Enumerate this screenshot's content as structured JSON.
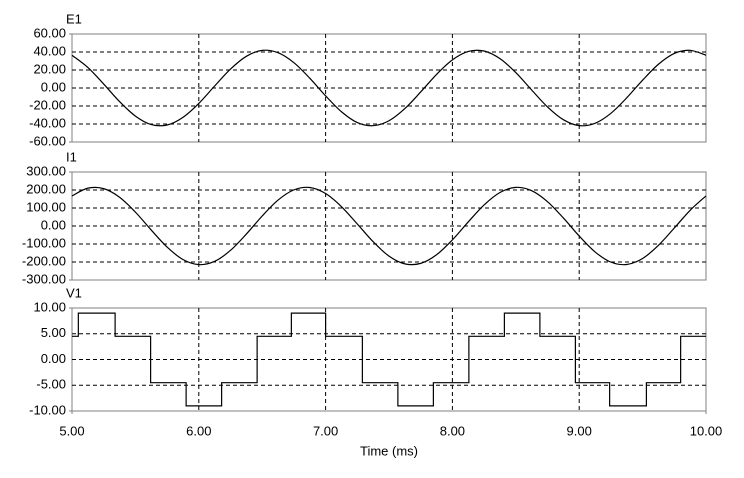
{
  "chart_data": [
    {
      "type": "line",
      "title": "E1",
      "color": "#000000",
      "x": [
        5,
        5.125,
        5.25,
        5.375,
        5.5,
        5.625,
        5.75,
        5.875,
        6,
        6.125,
        6.25,
        6.375,
        6.5,
        6.625,
        6.75,
        6.875,
        7,
        7.125,
        7.25,
        7.375,
        7.5,
        7.625,
        7.75,
        7.875,
        8,
        8.125,
        8.25,
        8.375,
        8.5,
        8.625,
        8.75,
        8.875,
        9,
        9.125,
        9.25,
        9.375,
        9.5,
        9.625,
        9.75,
        9.875,
        10
      ],
      "values": [
        36.4,
        22.9,
        4.4,
        -15.1,
        -31.2,
        -40.6,
        -41.1,
        -32.6,
        -17.1,
        2.2,
        21.0,
        35.2,
        41.8,
        39.2,
        28.1,
        10.9,
        -8.7,
        -26.4,
        -38.4,
        -41.9,
        -36.4,
        -22.9,
        -4.4,
        15.1,
        31.2,
        40.6,
        41.1,
        32.6,
        17.1,
        -2.2,
        -21.0,
        -35.2,
        -41.8,
        -39.2,
        -28.1,
        -10.9,
        8.7,
        26.4,
        38.4,
        41.9,
        36.4
      ],
      "xlim": [
        5,
        10
      ],
      "xticks": [
        6,
        7,
        8,
        9
      ],
      "ylim": [
        -60,
        60
      ],
      "yticks": [
        {
          "value": 60,
          "label": "60.00"
        },
        {
          "value": 40,
          "label": "40.00"
        },
        {
          "value": 20,
          "label": "20.00"
        },
        {
          "value": 0,
          "label": "0.00"
        },
        {
          "value": -20,
          "label": "-20.00"
        },
        {
          "value": -40,
          "label": "-40.00"
        },
        {
          "value": -60,
          "label": "-60.00"
        }
      ],
      "grid": true
    },
    {
      "type": "line",
      "title": "I1",
      "color": "#000000",
      "x": [
        5,
        5.125,
        5.25,
        5.375,
        5.5,
        5.625,
        5.75,
        5.875,
        6,
        6.125,
        6.25,
        6.375,
        6.5,
        6.625,
        6.75,
        6.875,
        7,
        7.125,
        7.25,
        7.375,
        7.5,
        7.625,
        7.75,
        7.875,
        8,
        8.125,
        8.25,
        8.375,
        8.5,
        8.625,
        8.75,
        8.875,
        9,
        9.125,
        9.25,
        9.375,
        9.5,
        9.625,
        9.75,
        9.875,
        10
      ],
      "values": [
        167.1,
        210.3,
        207.7,
        159.8,
        77.0,
        -22.5,
        -117.1,
        -186.2,
        -214.7,
        -196.4,
        -135.3,
        -44.7,
        55.6,
        143.9,
        200.7,
        213.8,
        180.3,
        107.5,
        11.3,
        -87.4,
        -167.1,
        -210.3,
        -207.7,
        -159.8,
        -77.0,
        22.5,
        117.1,
        186.2,
        214.7,
        196.4,
        135.3,
        44.7,
        -55.6,
        -143.9,
        -200.7,
        -213.8,
        -180.3,
        -107.5,
        -11.3,
        87.4,
        167.1
      ],
      "xlim": [
        5,
        10
      ],
      "xticks": [
        6,
        7,
        8,
        9
      ],
      "ylim": [
        -300,
        300
      ],
      "yticks": [
        {
          "value": 300,
          "label": "300.00"
        },
        {
          "value": 200,
          "label": "200.00"
        },
        {
          "value": 100,
          "label": "100.00"
        },
        {
          "value": 0,
          "label": "0.00"
        },
        {
          "value": -100,
          "label": "-100.00"
        },
        {
          "value": -200,
          "label": "-200.00"
        },
        {
          "value": -300,
          "label": "-300.00"
        }
      ],
      "grid": true
    },
    {
      "type": "line",
      "title": "V1",
      "color": "#000000",
      "drawstyle": "steps-post",
      "x": [
        5.0,
        5.05,
        5.34,
        5.62,
        5.9,
        6.18,
        6.46,
        6.73,
        7.0,
        7.29,
        7.57,
        7.85,
        8.13,
        8.41,
        8.69,
        8.97,
        9.24,
        9.53,
        9.8,
        10.0
      ],
      "values": [
        4.5,
        9,
        4.5,
        -4.5,
        -9,
        -4.5,
        4.5,
        9,
        4.5,
        -4.5,
        -9,
        -4.5,
        4.5,
        9,
        4.5,
        -4.5,
        -9,
        -4.5,
        4.5,
        4.5
      ],
      "xlim": [
        5,
        10
      ],
      "xticks": [
        {
          "value": 5,
          "label": "5.00"
        },
        {
          "value": 6,
          "label": "6.00"
        },
        {
          "value": 7,
          "label": "7.00"
        },
        {
          "value": 8,
          "label": "8.00"
        },
        {
          "value": 9,
          "label": "9.00"
        },
        {
          "value": 10,
          "label": "10.00"
        }
      ],
      "xlabel": "Time (ms)",
      "ylim": [
        -10,
        10
      ],
      "yticks": [
        {
          "value": 10,
          "label": "10.00"
        },
        {
          "value": 5,
          "label": "5.00"
        },
        {
          "value": 0,
          "label": "0.00"
        },
        {
          "value": -5,
          "label": "-5.00"
        },
        {
          "value": -10,
          "label": "-10.00"
        }
      ],
      "grid": true
    }
  ]
}
